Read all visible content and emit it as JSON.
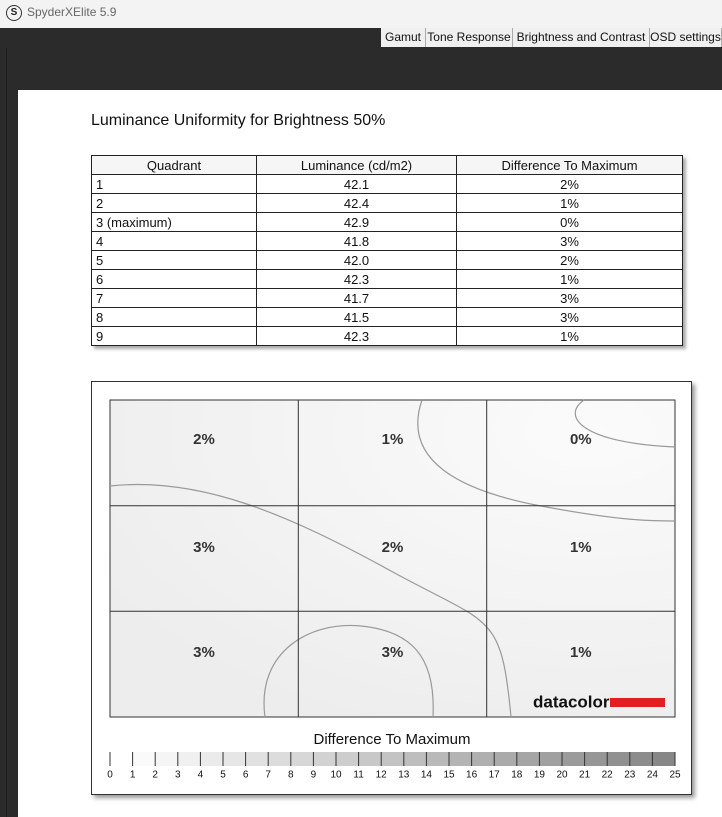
{
  "titlebar": {
    "icon": "S",
    "title": "SpyderXElite 5.9"
  },
  "tabs": [
    "Gamut",
    "Tone Response",
    "Brightness and Contrast",
    "OSD settings"
  ],
  "report": {
    "title": "Luminance Uniformity for Brightness 50%",
    "table": {
      "columns": [
        "Quadrant",
        "Luminance (cd/m2)",
        "Difference To Maximum"
      ],
      "rows": [
        [
          "1",
          "42.1",
          "2%"
        ],
        [
          "2",
          "42.4",
          "1%"
        ],
        [
          "3 (maximum)",
          "42.9",
          "0%"
        ],
        [
          "4",
          "41.8",
          "3%"
        ],
        [
          "5",
          "42.0",
          "2%"
        ],
        [
          "6",
          "42.3",
          "1%"
        ],
        [
          "7",
          "41.7",
          "3%"
        ],
        [
          "8",
          "41.5",
          "3%"
        ],
        [
          "9",
          "42.3",
          "1%"
        ]
      ]
    },
    "map": {
      "cells": [
        "2%",
        "1%",
        "0%",
        "3%",
        "2%",
        "1%",
        "3%",
        "3%",
        "1%"
      ],
      "logo": "datacolor",
      "caption": "Difference To Maximum",
      "scale": [
        0,
        1,
        2,
        3,
        4,
        5,
        6,
        7,
        8,
        9,
        10,
        11,
        12,
        13,
        14,
        15,
        16,
        17,
        18,
        19,
        20,
        21,
        22,
        23,
        24,
        25
      ]
    }
  }
}
